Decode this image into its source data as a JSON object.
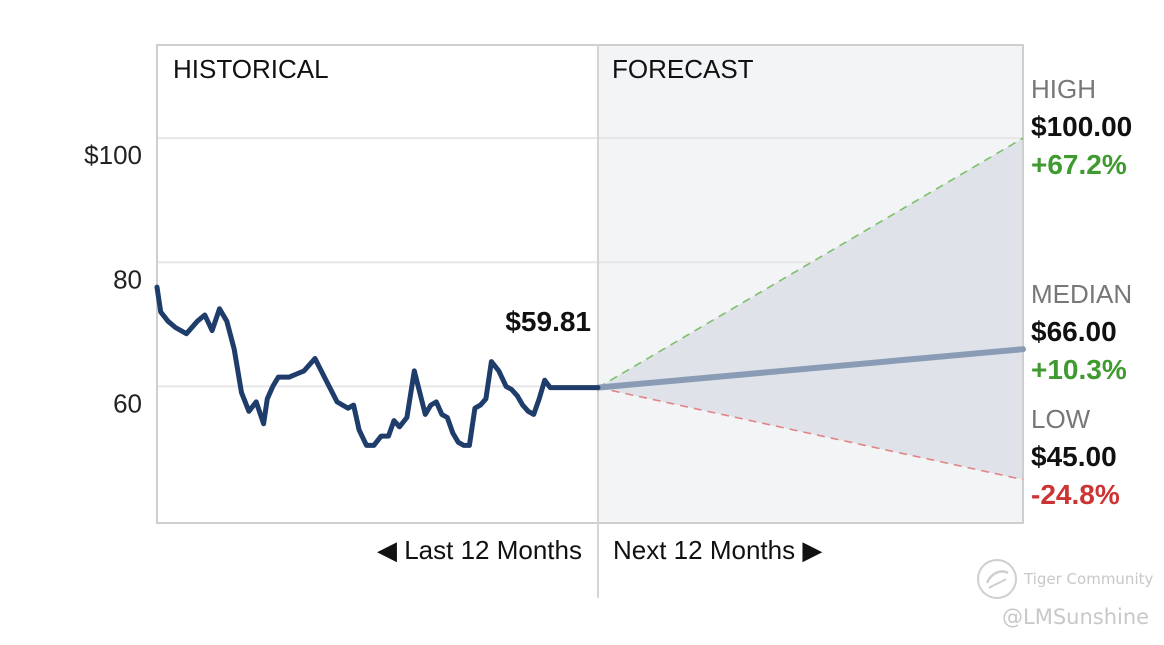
{
  "chart_data": {
    "type": "line",
    "sections": {
      "historical_label": "HISTORICAL",
      "forecast_label": "FORECAST"
    },
    "y_ticks": [
      {
        "value": 100,
        "label": "$100"
      },
      {
        "value": 80,
        "label": "80"
      },
      {
        "value": 60,
        "label": "60"
      }
    ],
    "ylim": [
      38,
      115
    ],
    "historical": {
      "name": "",
      "color": "#1f3d6b",
      "months_span": [
        -12,
        0
      ],
      "x": [
        -12,
        -11.9,
        -11.7,
        -11.5,
        -11.2,
        -10.9,
        -10.7,
        -10.5,
        -10.3,
        -10.1,
        -9.9,
        -9.7,
        -9.5,
        -9.3,
        -9.1,
        -9.0,
        -8.85,
        -8.7,
        -8.55,
        -8.4,
        -8.2,
        -8.0,
        -7.7,
        -7.4,
        -7.1,
        -6.95,
        -6.8,
        -6.65,
        -6.5,
        -6.3,
        -6.1,
        -5.9,
        -5.7,
        -5.55,
        -5.4,
        -5.2,
        -5.0,
        -4.85,
        -4.7,
        -4.55,
        -4.4,
        -4.25,
        -4.1,
        -3.95,
        -3.8,
        -3.65,
        -3.5,
        -3.35,
        -3.2,
        -3.05,
        -2.9,
        -2.7,
        -2.5,
        -2.35,
        -2.2,
        -2.05,
        -1.9,
        -1.75,
        -1.6,
        -1.45,
        -1.3,
        -1.15,
        -1.0,
        -0.8,
        -0.6,
        -0.45,
        -0.3,
        -0.15,
        0
      ],
      "values": [
        76,
        72,
        70.5,
        69.5,
        68.5,
        70.5,
        71.5,
        69,
        72.5,
        70.5,
        66,
        59,
        56,
        57.5,
        54,
        58,
        60,
        61.5,
        61.5,
        61.5,
        62,
        62.5,
        64.5,
        61,
        57.5,
        57,
        56.5,
        57,
        53,
        50.5,
        50.5,
        52,
        52,
        54.5,
        53.5,
        55,
        62.5,
        59,
        55.5,
        57,
        57.5,
        55.5,
        55,
        52.5,
        51,
        50.5,
        50.5,
        56.5,
        57,
        58,
        64,
        62.5,
        60,
        59.5,
        58.5,
        57,
        56,
        55.5,
        58,
        61,
        59.81,
        59.81,
        59.81,
        59.81,
        59.81,
        59.81,
        59.81,
        59.81,
        59.81
      ]
    },
    "last_price": {
      "value": 59.81,
      "label": "$59.81"
    },
    "forecast": {
      "months_span": [
        0,
        12
      ],
      "start_value": 59.81,
      "band_color": "#dfe3e9",
      "high": {
        "title": "HIGH",
        "value": 100.0,
        "price_label": "$100.00",
        "change_label": "+67.2%",
        "line_color": "#7cc06a",
        "change_color": "#3f9a2f"
      },
      "median": {
        "title": "MEDIAN",
        "value": 66.0,
        "price_label": "$66.00",
        "change_label": "+10.3%",
        "line_color": "#8a9cb5",
        "change_color": "#3f9a2f"
      },
      "low": {
        "title": "LOW",
        "value": 45.0,
        "price_label": "$45.00",
        "change_label": "-24.8%",
        "line_color": "#e08585",
        "change_color": "#cc3333"
      }
    },
    "x_nav": {
      "past_label": "◀ Last 12 Months",
      "future_label": "Next 12 Months ▶"
    },
    "grid": true
  },
  "watermark": {
    "brand": "Tiger Community",
    "handle": "@LMSunshine"
  }
}
